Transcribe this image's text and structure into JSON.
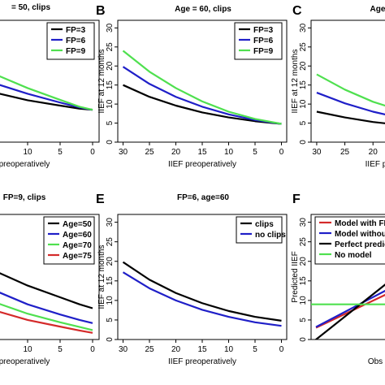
{
  "chart_data": [
    {
      "panel_letter": "",
      "type": "line",
      "title": "= 50, clips",
      "xlabel": "preoperatively",
      "ylabel": "",
      "x_ticks": [
        15,
        10,
        5,
        0
      ],
      "y_ticks": [],
      "xlim": [
        18,
        -1
      ],
      "ylim": [
        0,
        32
      ],
      "legend": {
        "position": "top-right",
        "entries": [
          "FP=3",
          "FP=6",
          "FP=9"
        ]
      },
      "series": [
        {
          "name": "FP=3",
          "color": "#000000",
          "x": [
            18,
            15,
            10,
            5,
            2,
            0
          ],
          "y": [
            14.6,
            13.0,
            11.0,
            9.6,
            8.8,
            8.5
          ]
        },
        {
          "name": "FP=6",
          "color": "#1f1fc8",
          "x": [
            18,
            15,
            10,
            5,
            2,
            0
          ],
          "y": [
            17.5,
            15.4,
            12.7,
            10.4,
            9.1,
            8.5
          ]
        },
        {
          "name": "FP=9",
          "color": "#4fe04f",
          "x": [
            18,
            15,
            10,
            5,
            2,
            0
          ],
          "y": [
            20.5,
            17.8,
            14.2,
            11.1,
            9.3,
            8.5
          ]
        }
      ]
    },
    {
      "panel_letter": "B",
      "type": "line",
      "title": "Age = 60, clips",
      "xlabel": "IIEF preoperatively",
      "ylabel": "IIEF at 12 months",
      "x_ticks": [
        30,
        25,
        20,
        15,
        10,
        5,
        0
      ],
      "y_ticks": [
        0,
        5,
        10,
        15,
        20,
        25,
        30
      ],
      "xlim": [
        31,
        -1
      ],
      "ylim": [
        0,
        32
      ],
      "legend": {
        "position": "top-right",
        "entries": [
          "FP=3",
          "FP=6",
          "FP=9"
        ]
      },
      "series": [
        {
          "name": "FP=3",
          "color": "#000000",
          "x": [
            30,
            25,
            20,
            15,
            10,
            5,
            0
          ],
          "y": [
            15.0,
            11.9,
            9.6,
            7.8,
            6.5,
            5.5,
            4.8
          ]
        },
        {
          "name": "FP=6",
          "color": "#1f1fc8",
          "x": [
            30,
            25,
            20,
            15,
            10,
            5,
            0
          ],
          "y": [
            19.8,
            15.3,
            11.9,
            9.3,
            7.3,
            5.8,
            4.8
          ]
        },
        {
          "name": "FP=9",
          "color": "#4fe04f",
          "x": [
            30,
            25,
            20,
            15,
            10,
            5,
            0
          ],
          "y": [
            24.0,
            18.5,
            14.2,
            10.7,
            8.0,
            6.1,
            4.8
          ]
        }
      ]
    },
    {
      "panel_letter": "C",
      "type": "line",
      "title": "Age",
      "xlabel": "IIEF p",
      "ylabel": "IIEF at 12 months",
      "x_ticks": [
        30,
        25,
        20
      ],
      "y_ticks": [
        0,
        5,
        10,
        15,
        20,
        25,
        30
      ],
      "xlim": [
        31,
        17
      ],
      "ylim": [
        0,
        32
      ],
      "legend": {
        "position": "top-right",
        "entries": []
      },
      "series": [
        {
          "name": "",
          "color": "#000000",
          "x": [
            30,
            25,
            20,
            17
          ],
          "y": [
            8.0,
            6.5,
            5.3,
            4.8
          ]
        },
        {
          "name": "",
          "color": "#1f1fc8",
          "x": [
            30,
            25,
            20,
            17
          ],
          "y": [
            13.0,
            10.2,
            8.0,
            7.0
          ]
        },
        {
          "name": "",
          "color": "#4fe04f",
          "x": [
            30,
            25,
            20,
            17
          ],
          "y": [
            17.8,
            13.8,
            10.6,
            9.2
          ]
        }
      ]
    },
    {
      "panel_letter": "",
      "type": "line",
      "title": "FP=9, clips",
      "xlabel": "preoperatively",
      "ylabel": "",
      "x_ticks": [
        15,
        10,
        5,
        0
      ],
      "y_ticks": [],
      "xlim": [
        18,
        -1
      ],
      "ylim": [
        0,
        32
      ],
      "legend": {
        "position": "top-right",
        "entries": [
          "Age=50",
          "Age=60",
          "Age=70",
          "Age=75"
        ]
      },
      "series": [
        {
          "name": "Age=50",
          "color": "#000000",
          "x": [
            18,
            15,
            10,
            5,
            2,
            0
          ],
          "y": [
            20.5,
            17.5,
            13.8,
            10.8,
            9.0,
            8.0
          ]
        },
        {
          "name": "Age=60",
          "color": "#1f1fc8",
          "x": [
            18,
            15,
            10,
            5,
            2,
            0
          ],
          "y": [
            15.5,
            12.5,
            9.0,
            6.4,
            5.0,
            4.2
          ]
        },
        {
          "name": "Age=70",
          "color": "#4fe04f",
          "x": [
            18,
            15,
            10,
            5,
            2,
            0
          ],
          "y": [
            12.0,
            9.5,
            6.6,
            4.4,
            3.2,
            2.4
          ]
        },
        {
          "name": "Age=75",
          "color": "#d42a2a",
          "x": [
            18,
            15,
            10,
            5,
            2,
            0
          ],
          "y": [
            9.5,
            7.4,
            5.0,
            3.3,
            2.3,
            1.7
          ]
        }
      ]
    },
    {
      "panel_letter": "E",
      "type": "line",
      "title": "FP=6, age=60",
      "xlabel": "IIEF preoperatively",
      "ylabel": "IIEF at 12 months",
      "x_ticks": [
        30,
        25,
        20,
        15,
        10,
        5,
        0
      ],
      "y_ticks": [
        0,
        5,
        10,
        15,
        20,
        25,
        30
      ],
      "xlim": [
        31,
        -1
      ],
      "ylim": [
        0,
        32
      ],
      "legend": {
        "position": "top-right",
        "entries": [
          "clips",
          "no clips"
        ]
      },
      "series": [
        {
          "name": "clips",
          "color": "#000000",
          "x": [
            30,
            25,
            20,
            15,
            10,
            5,
            0
          ],
          "y": [
            19.8,
            15.3,
            11.9,
            9.3,
            7.3,
            5.8,
            4.8
          ]
        },
        {
          "name": "no clips",
          "color": "#1f1fc8",
          "x": [
            30,
            25,
            20,
            15,
            10,
            5,
            0
          ],
          "y": [
            17.2,
            13.1,
            10.0,
            7.6,
            5.8,
            4.4,
            3.5
          ]
        }
      ]
    },
    {
      "panel_letter": "F",
      "type": "line",
      "title": "",
      "xlabel": "Obs",
      "ylabel": "Predicted IIEF",
      "x_ticks": [],
      "y_ticks": [
        0,
        5,
        10,
        15,
        20,
        25,
        30
      ],
      "xlim": [
        -1,
        15
      ],
      "ylim": [
        0,
        32
      ],
      "legend": {
        "position": "top-left",
        "entries": [
          "Model with FP",
          "Model without",
          "Perfect predict",
          "No model"
        ]
      },
      "series": [
        {
          "name": "Model with FP",
          "color": "#d42a2a",
          "x": [
            0,
            5,
            10,
            15
          ],
          "y": [
            3.0,
            6.0,
            9.0,
            12.0
          ]
        },
        {
          "name": "Model without",
          "color": "#1f1fc8",
          "x": [
            0,
            5,
            10,
            15
          ],
          "y": [
            3.2,
            6.5,
            9.8,
            13.1
          ]
        },
        {
          "name": "Perfect predict",
          "color": "#000000",
          "x": [
            -1,
            15
          ],
          "y": [
            -1,
            15
          ]
        },
        {
          "name": "No model",
          "color": "#4fe04f",
          "x": [
            -1,
            15
          ],
          "y": [
            9.0,
            9.0
          ]
        }
      ]
    }
  ]
}
